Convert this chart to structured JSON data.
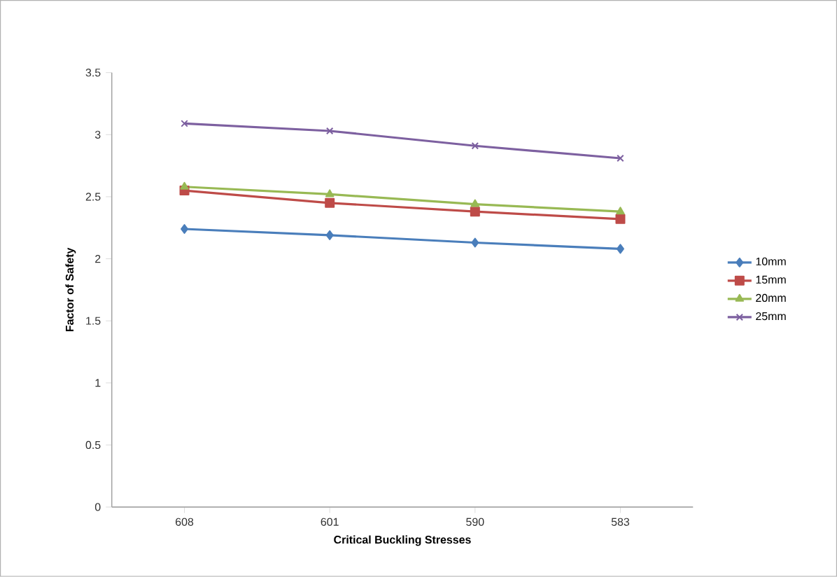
{
  "chart_data": {
    "type": "line",
    "xlabel": "Critical Buckling Stresses",
    "ylabel": "Factor of Safety",
    "categories": [
      "608",
      "601",
      "590",
      "583"
    ],
    "series": [
      {
        "name": "10mm",
        "color": "#4a7ebb",
        "marker": "diamond",
        "values": [
          2.24,
          2.19,
          2.13,
          2.08
        ]
      },
      {
        "name": "15mm",
        "color": "#be4b48",
        "marker": "square",
        "values": [
          2.55,
          2.45,
          2.38,
          2.32
        ]
      },
      {
        "name": "20mm",
        "color": "#98b954",
        "marker": "triangle",
        "values": [
          2.58,
          2.52,
          2.44,
          2.38
        ]
      },
      {
        "name": "25mm",
        "color": "#7d60a0",
        "marker": "cross",
        "values": [
          3.09,
          3.03,
          2.91,
          2.81
        ]
      }
    ],
    "ylim": [
      0,
      3.5
    ],
    "yticks": [
      0,
      0.5,
      1,
      1.5,
      2,
      2.5,
      3,
      3.5
    ],
    "grid": false,
    "legend": "right",
    "line_style": "solid"
  }
}
